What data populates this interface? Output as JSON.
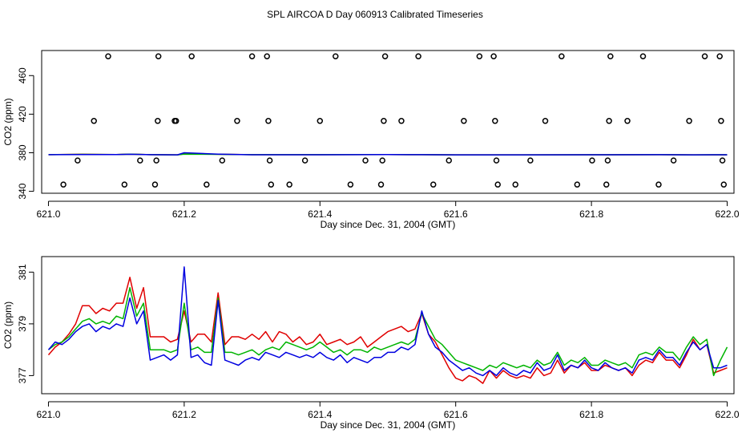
{
  "figure": {
    "title": "SPL AIRCOA D  Day 060913  Calibrated Timeseries"
  },
  "colors": {
    "red": "#e00000",
    "green": "#00b400",
    "blue": "#0000e0",
    "axis": "#000000"
  },
  "chart_data": [
    {
      "type": "scatter",
      "xlabel": "Day since Dec. 31, 2004 (GMT)",
      "ylabel": "CO2 (ppm)",
      "xlim": [
        620.99,
        622.01
      ],
      "ylim": [
        338,
        486
      ],
      "xticks": [
        621.0,
        621.2,
        621.4,
        621.6,
        621.8,
        622.0
      ],
      "xtick_labels": [
        "621.0",
        "621.2",
        "621.4",
        "621.6",
        "621.8",
        "622.0"
      ],
      "yticks": [
        340,
        380,
        420,
        460
      ],
      "ytick_labels": [
        "340",
        "380",
        "420",
        "460"
      ],
      "points": [
        [
          621.022,
          347
        ],
        [
          621.043,
          372
        ],
        [
          621.067,
          413
        ],
        [
          621.088,
          480
        ],
        [
          621.112,
          347
        ],
        [
          621.135,
          372
        ],
        [
          621.157,
          347
        ],
        [
          621.159,
          372
        ],
        [
          621.161,
          413
        ],
        [
          621.162,
          480
        ],
        [
          621.186,
          413
        ],
        [
          621.188,
          413
        ],
        [
          621.211,
          480
        ],
        [
          621.233,
          347
        ],
        [
          621.256,
          372
        ],
        [
          621.278,
          413
        ],
        [
          621.3,
          480
        ],
        [
          621.322,
          480
        ],
        [
          621.324,
          413
        ],
        [
          621.326,
          372
        ],
        [
          621.328,
          347
        ],
        [
          621.355,
          347
        ],
        [
          621.378,
          372
        ],
        [
          621.4,
          413
        ],
        [
          621.423,
          480
        ],
        [
          621.445,
          347
        ],
        [
          621.467,
          372
        ],
        [
          621.49,
          347
        ],
        [
          621.492,
          372
        ],
        [
          621.494,
          413
        ],
        [
          621.496,
          480
        ],
        [
          621.52,
          413
        ],
        [
          621.545,
          480
        ],
        [
          621.567,
          347
        ],
        [
          621.59,
          372
        ],
        [
          621.612,
          413
        ],
        [
          621.635,
          480
        ],
        [
          621.656,
          480
        ],
        [
          621.658,
          413
        ],
        [
          621.66,
          372
        ],
        [
          621.662,
          347
        ],
        [
          621.688,
          347
        ],
        [
          621.71,
          372
        ],
        [
          621.732,
          413
        ],
        [
          621.756,
          480
        ],
        [
          621.779,
          347
        ],
        [
          621.801,
          372
        ],
        [
          621.822,
          347
        ],
        [
          621.824,
          372
        ],
        [
          621.826,
          413
        ],
        [
          621.828,
          480
        ],
        [
          621.853,
          413
        ],
        [
          621.876,
          480
        ],
        [
          621.899,
          347
        ],
        [
          621.921,
          372
        ],
        [
          621.944,
          413
        ],
        [
          621.967,
          480
        ],
        [
          621.989,
          480
        ],
        [
          621.991,
          413
        ],
        [
          621.993,
          372
        ],
        [
          621.995,
          347
        ]
      ],
      "series": [
        {
          "name": "red",
          "color": "#e00000",
          "x": [
            621.0,
            621.05,
            621.1,
            621.12,
            621.15,
            621.19,
            621.2,
            621.25,
            621.3,
            621.4,
            621.5,
            621.55,
            621.6,
            621.7,
            621.8,
            621.9,
            621.95,
            622.0
          ],
          "values": [
            378.0,
            378.4,
            378.2,
            378.6,
            378.0,
            377.8,
            378.8,
            378.4,
            378.0,
            378.0,
            378.2,
            378.0,
            377.8,
            377.8,
            377.9,
            378.0,
            377.8,
            377.8
          ]
        },
        {
          "name": "green",
          "color": "#00b400",
          "x": [
            621.0,
            621.05,
            621.1,
            621.12,
            621.15,
            621.19,
            621.2,
            621.25,
            621.3,
            621.4,
            621.5,
            621.55,
            621.6,
            621.7,
            621.8,
            621.9,
            621.95,
            622.0
          ],
          "values": [
            378.0,
            378.3,
            378.1,
            378.5,
            378.0,
            377.8,
            378.6,
            378.3,
            378.0,
            378.0,
            378.1,
            378.0,
            377.8,
            377.8,
            377.9,
            378.0,
            377.8,
            377.9
          ]
        },
        {
          "name": "blue",
          "color": "#0000e0",
          "x": [
            621.0,
            621.05,
            621.1,
            621.12,
            621.15,
            621.19,
            621.2,
            621.25,
            621.3,
            621.4,
            621.5,
            621.55,
            621.6,
            621.7,
            621.8,
            621.9,
            621.95,
            622.0
          ],
          "values": [
            378.0,
            378.2,
            378.1,
            378.4,
            378.0,
            377.8,
            380.0,
            378.6,
            377.9,
            377.9,
            378.1,
            378.0,
            377.8,
            377.8,
            377.9,
            378.0,
            377.8,
            377.9
          ]
        }
      ]
    },
    {
      "type": "line",
      "xlabel": "Day since Dec. 31, 2004 (GMT)",
      "ylabel": "CO2 (ppm)",
      "xlim": [
        620.99,
        622.01
      ],
      "ylim": [
        376.3,
        381.6
      ],
      "xticks": [
        621.0,
        621.2,
        621.4,
        621.6,
        621.8,
        622.0
      ],
      "xtick_labels": [
        "621.0",
        "621.2",
        "621.4",
        "621.6",
        "621.8",
        "622.0"
      ],
      "yticks": [
        377,
        379,
        381
      ],
      "ytick_labels": [
        "377",
        "379",
        "381"
      ],
      "series": [
        {
          "name": "red",
          "color": "#e00000",
          "x": [
            621.0,
            621.01,
            621.02,
            621.03,
            621.04,
            621.05,
            621.06,
            621.07,
            621.08,
            621.09,
            621.1,
            621.11,
            621.12,
            621.13,
            621.14,
            621.15,
            621.16,
            621.17,
            621.18,
            621.19,
            621.2,
            621.21,
            621.22,
            621.23,
            621.24,
            621.25,
            621.26,
            621.27,
            621.28,
            621.29,
            621.3,
            621.31,
            621.32,
            621.33,
            621.34,
            621.35,
            621.36,
            621.37,
            621.38,
            621.39,
            621.4,
            621.41,
            621.42,
            621.43,
            621.44,
            621.45,
            621.46,
            621.47,
            621.48,
            621.49,
            621.5,
            621.51,
            621.52,
            621.53,
            621.54,
            621.55,
            621.56,
            621.57,
            621.58,
            621.59,
            621.6,
            621.61,
            621.62,
            621.63,
            621.64,
            621.65,
            621.66,
            621.67,
            621.68,
            621.69,
            621.7,
            621.71,
            621.72,
            621.73,
            621.74,
            621.75,
            621.76,
            621.77,
            621.78,
            621.79,
            621.8,
            621.81,
            621.82,
            621.83,
            621.84,
            621.85,
            621.86,
            621.87,
            621.88,
            621.89,
            621.9,
            621.91,
            621.92,
            621.93,
            621.94,
            621.95,
            621.96,
            621.97,
            621.98,
            621.99,
            622.0
          ],
          "values": [
            377.8,
            378.1,
            378.3,
            378.6,
            379.0,
            379.7,
            379.7,
            379.4,
            379.6,
            379.5,
            379.8,
            379.8,
            380.8,
            379.6,
            380.4,
            378.5,
            378.5,
            378.5,
            378.3,
            378.4,
            379.5,
            378.3,
            378.6,
            378.6,
            378.3,
            380.2,
            378.2,
            378.5,
            378.5,
            378.4,
            378.6,
            378.4,
            378.7,
            378.3,
            378.7,
            378.6,
            378.3,
            378.5,
            378.2,
            378.3,
            378.6,
            378.2,
            378.3,
            378.4,
            378.2,
            378.3,
            378.5,
            378.1,
            378.3,
            378.5,
            378.7,
            378.8,
            378.9,
            378.7,
            378.8,
            379.4,
            378.6,
            378.3,
            377.8,
            377.3,
            376.9,
            376.8,
            377.0,
            376.9,
            376.7,
            377.2,
            376.9,
            377.2,
            377.0,
            376.9,
            377.0,
            376.9,
            377.3,
            377.0,
            377.1,
            377.6,
            377.1,
            377.4,
            377.3,
            377.5,
            377.2,
            377.2,
            377.4,
            377.3,
            377.2,
            377.3,
            377.0,
            377.4,
            377.6,
            377.5,
            377.9,
            377.6,
            377.6,
            377.3,
            377.8,
            378.4,
            378.0,
            378.2,
            377.1,
            377.2,
            377.3
          ]
        },
        {
          "name": "green",
          "color": "#00b400",
          "x": [
            621.0,
            621.01,
            621.02,
            621.03,
            621.04,
            621.05,
            621.06,
            621.07,
            621.08,
            621.09,
            621.1,
            621.11,
            621.12,
            621.13,
            621.14,
            621.15,
            621.16,
            621.17,
            621.18,
            621.19,
            621.2,
            621.21,
            621.22,
            621.23,
            621.24,
            621.25,
            621.26,
            621.27,
            621.28,
            621.29,
            621.3,
            621.31,
            621.32,
            621.33,
            621.34,
            621.35,
            621.36,
            621.37,
            621.38,
            621.39,
            621.4,
            621.41,
            621.42,
            621.43,
            621.44,
            621.45,
            621.46,
            621.47,
            621.48,
            621.49,
            621.5,
            621.51,
            621.52,
            621.53,
            621.54,
            621.55,
            621.56,
            621.57,
            621.58,
            621.59,
            621.6,
            621.61,
            621.62,
            621.63,
            621.64,
            621.65,
            621.66,
            621.67,
            621.68,
            621.69,
            621.7,
            621.71,
            621.72,
            621.73,
            621.74,
            621.75,
            621.76,
            621.77,
            621.78,
            621.79,
            621.8,
            621.81,
            621.82,
            621.83,
            621.84,
            621.85,
            621.86,
            621.87,
            621.88,
            621.89,
            621.9,
            621.91,
            621.92,
            621.93,
            621.94,
            621.95,
            621.96,
            621.97,
            621.98,
            621.99,
            622.0
          ],
          "values": [
            378.0,
            378.2,
            378.3,
            378.5,
            378.8,
            379.1,
            379.2,
            379.0,
            379.1,
            379.0,
            379.3,
            379.2,
            380.4,
            379.3,
            379.8,
            378.0,
            378.0,
            378.0,
            377.9,
            378.0,
            379.8,
            378.0,
            378.1,
            377.9,
            377.9,
            380.0,
            377.9,
            377.9,
            377.8,
            377.9,
            378.0,
            377.8,
            378.0,
            378.1,
            378.0,
            378.3,
            378.2,
            378.1,
            378.0,
            378.1,
            378.3,
            378.1,
            377.9,
            378.0,
            377.8,
            378.0,
            378.0,
            377.9,
            378.1,
            378.0,
            378.1,
            378.2,
            378.3,
            378.2,
            378.4,
            379.4,
            378.9,
            378.4,
            378.2,
            377.9,
            377.6,
            377.5,
            377.4,
            377.3,
            377.2,
            377.4,
            377.3,
            377.5,
            377.4,
            377.3,
            377.4,
            377.3,
            377.6,
            377.4,
            377.5,
            377.9,
            377.4,
            377.6,
            377.5,
            377.7,
            377.4,
            377.4,
            377.6,
            377.5,
            377.4,
            377.5,
            377.3,
            377.8,
            377.9,
            377.8,
            378.1,
            377.9,
            377.9,
            377.6,
            378.1,
            378.5,
            378.2,
            378.4,
            377.0,
            377.6,
            378.1
          ]
        },
        {
          "name": "blue",
          "color": "#0000e0",
          "x": [
            621.0,
            621.01,
            621.02,
            621.03,
            621.04,
            621.05,
            621.06,
            621.07,
            621.08,
            621.09,
            621.1,
            621.11,
            621.12,
            621.13,
            621.14,
            621.15,
            621.16,
            621.17,
            621.18,
            621.19,
            621.2,
            621.21,
            621.22,
            621.23,
            621.24,
            621.25,
            621.26,
            621.27,
            621.28,
            621.29,
            621.3,
            621.31,
            621.32,
            621.33,
            621.34,
            621.35,
            621.36,
            621.37,
            621.38,
            621.39,
            621.4,
            621.41,
            621.42,
            621.43,
            621.44,
            621.45,
            621.46,
            621.47,
            621.48,
            621.49,
            621.5,
            621.51,
            621.52,
            621.53,
            621.54,
            621.55,
            621.56,
            621.57,
            621.58,
            621.59,
            621.6,
            621.61,
            621.62,
            621.63,
            621.64,
            621.65,
            621.66,
            621.67,
            621.68,
            621.69,
            621.7,
            621.71,
            621.72,
            621.73,
            621.74,
            621.75,
            621.76,
            621.77,
            621.78,
            621.79,
            621.8,
            621.81,
            621.82,
            621.83,
            621.84,
            621.85,
            621.86,
            621.87,
            621.88,
            621.89,
            621.9,
            621.91,
            621.92,
            621.93,
            621.94,
            621.95,
            621.96,
            621.97,
            621.98,
            621.99,
            622.0
          ],
          "values": [
            378.0,
            378.3,
            378.2,
            378.4,
            378.7,
            378.9,
            379.0,
            378.7,
            378.9,
            378.8,
            379.0,
            378.9,
            380.0,
            379.0,
            379.5,
            377.6,
            377.7,
            377.8,
            377.6,
            377.8,
            381.2,
            377.7,
            377.8,
            377.5,
            377.4,
            379.9,
            377.6,
            377.5,
            377.4,
            377.6,
            377.7,
            377.6,
            377.9,
            377.8,
            377.7,
            377.9,
            377.8,
            377.7,
            377.8,
            377.7,
            377.9,
            377.7,
            377.6,
            377.8,
            377.5,
            377.7,
            377.6,
            377.5,
            377.7,
            377.7,
            377.9,
            377.9,
            378.1,
            378.0,
            378.2,
            379.5,
            378.6,
            378.1,
            377.9,
            377.6,
            377.4,
            377.2,
            377.3,
            377.1,
            377.0,
            377.2,
            377.0,
            377.3,
            377.1,
            377.0,
            377.2,
            377.1,
            377.5,
            377.2,
            377.3,
            377.8,
            377.2,
            377.4,
            377.3,
            377.6,
            377.3,
            377.2,
            377.5,
            377.3,
            377.2,
            377.3,
            377.1,
            377.6,
            377.7,
            377.6,
            378.0,
            377.7,
            377.7,
            377.4,
            377.9,
            378.3,
            378.0,
            378.2,
            377.3,
            377.3,
            377.4
          ]
        }
      ]
    }
  ]
}
